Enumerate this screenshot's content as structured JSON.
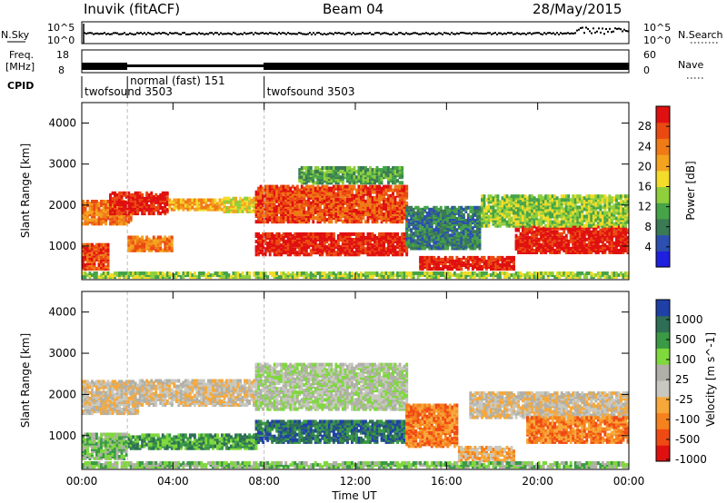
{
  "header": {
    "station": "Inuvik (fitACF)",
    "beam": "Beam 04",
    "date": "28/May/2015"
  },
  "top_panels": {
    "nsky_label": "N.Sky",
    "nsky_ticks": [
      "10^5",
      "10^0"
    ],
    "nsearch_label": "N.Search",
    "nsearch_ticks": [
      "10^5",
      "10^0"
    ],
    "freq_label_1": "Freq.",
    "freq_label_2": "[MHz]",
    "freq_ticks": [
      "18",
      "8"
    ],
    "nave_label": "Nave",
    "nave_ticks": [
      "60",
      "0"
    ],
    "cpid_label": "CPID",
    "cpid_segments": [
      {
        "label": "twofsound 3503",
        "start_h": 0,
        "end_h": 2
      },
      {
        "label": "normal (fast) 151",
        "start_h": 2,
        "end_h": 8
      },
      {
        "label": "twofsound 3503",
        "start_h": 8,
        "end_h": 24
      }
    ]
  },
  "colors": {
    "power_scale": [
      "#1f1fe0",
      "#2c4fb0",
      "#3a7a55",
      "#46a348",
      "#8fcf3c",
      "#f3dc2a",
      "#f5a21f",
      "#f07a16",
      "#ea4a12",
      "#e01010"
    ],
    "velocity_scale": [
      "#e01010",
      "#f04a14",
      "#f5821c",
      "#f7a83a",
      "#c8c8c0",
      "#b0b0a8",
      "#7fd83c",
      "#3a9a45",
      "#2e6e55",
      "#2040a8"
    ]
  },
  "chart_data": [
    {
      "type": "heatmap",
      "title": "Power",
      "xlabel": "",
      "ylabel": "Slant Range [km]",
      "x_ticks": [
        "00:00",
        "04:00",
        "08:00",
        "12:00",
        "16:00",
        "20:00",
        "00:00"
      ],
      "y_ticks": [
        "1000",
        "2000",
        "3000",
        "4000"
      ],
      "xlim": [
        0,
        24
      ],
      "ylim": [
        180,
        4500
      ],
      "colorbar_label": "Power [dB]",
      "colorbar_ticks": [
        "4",
        "8",
        "12",
        "16",
        "20",
        "24",
        "28"
      ],
      "bands": [
        {
          "h0": 0.0,
          "h1": 1.2,
          "r0": 400,
          "r1": 1000,
          "level": 8
        },
        {
          "h0": 0.0,
          "h1": 2.2,
          "r0": 1500,
          "r1": 2050,
          "level": 7
        },
        {
          "h0": 1.2,
          "h1": 3.8,
          "r0": 1750,
          "r1": 2250,
          "level": 9
        },
        {
          "h0": 2.0,
          "h1": 4.0,
          "r0": 850,
          "r1": 1200,
          "level": 7
        },
        {
          "h0": 3.8,
          "h1": 6.2,
          "r0": 1850,
          "r1": 2100,
          "level": 6
        },
        {
          "h0": 6.2,
          "h1": 7.6,
          "r0": 1800,
          "r1": 2150,
          "level": 5
        },
        {
          "h0": 7.6,
          "h1": 14.2,
          "r0": 1550,
          "r1": 2450,
          "level": 8
        },
        {
          "h0": 7.6,
          "h1": 14.2,
          "r0": 750,
          "r1": 1250,
          "level": 9
        },
        {
          "h0": 9.5,
          "h1": 14.0,
          "r0": 2500,
          "r1": 2900,
          "level": 3
        },
        {
          "h0": 14.2,
          "h1": 17.5,
          "r0": 900,
          "r1": 1900,
          "level": 2
        },
        {
          "h0": 14.8,
          "h1": 19.0,
          "r0": 400,
          "r1": 700,
          "level": 9
        },
        {
          "h0": 19.0,
          "h1": 24.0,
          "r0": 800,
          "r1": 1450,
          "level": 9
        },
        {
          "h0": 17.5,
          "h1": 24.0,
          "r0": 1450,
          "r1": 2200,
          "level": 4
        },
        {
          "h0": 0.0,
          "h1": 24.0,
          "r0": 200,
          "r1": 320,
          "level": 4
        }
      ]
    },
    {
      "type": "heatmap",
      "title": "Velocity",
      "xlabel": "Time UT",
      "ylabel": "Slant Range [km]",
      "x_ticks": [
        "00:00",
        "04:00",
        "08:00",
        "12:00",
        "16:00",
        "20:00",
        "00:00"
      ],
      "y_ticks": [
        "1000",
        "2000",
        "3000",
        "4000"
      ],
      "xlim": [
        0,
        24
      ],
      "ylim": [
        180,
        4500
      ],
      "colorbar_label": "Velocity [m s^-1]",
      "colorbar_ticks": [
        "1000",
        "500",
        "100",
        "25",
        "-25",
        "-100",
        "-500",
        "-1000"
      ],
      "bands": [
        {
          "h0": 0.0,
          "h1": 2.5,
          "r0": 1500,
          "r1": 2300,
          "level": 4
        },
        {
          "h0": 2.5,
          "h1": 7.6,
          "r0": 1700,
          "r1": 2300,
          "level": 4
        },
        {
          "h0": 7.6,
          "h1": 14.2,
          "r0": 1600,
          "r1": 2700,
          "level": 5
        },
        {
          "h0": 0.0,
          "h1": 2.0,
          "r0": 400,
          "r1": 1000,
          "level": 6
        },
        {
          "h0": 2.0,
          "h1": 7.6,
          "r0": 650,
          "r1": 1000,
          "level": 7
        },
        {
          "h0": 7.6,
          "h1": 14.2,
          "r0": 800,
          "r1": 1300,
          "level": 8
        },
        {
          "h0": 14.2,
          "h1": 16.5,
          "r0": 700,
          "r1": 1700,
          "level": 2
        },
        {
          "h0": 16.5,
          "h1": 19.0,
          "r0": 350,
          "r1": 700,
          "level": 3
        },
        {
          "h0": 17.0,
          "h1": 24.0,
          "r0": 1400,
          "r1": 2000,
          "level": 4
        },
        {
          "h0": 19.5,
          "h1": 24.0,
          "r0": 800,
          "r1": 1400,
          "level": 2
        },
        {
          "h0": 0.0,
          "h1": 24.0,
          "r0": 200,
          "r1": 320,
          "level": 6
        }
      ]
    }
  ]
}
